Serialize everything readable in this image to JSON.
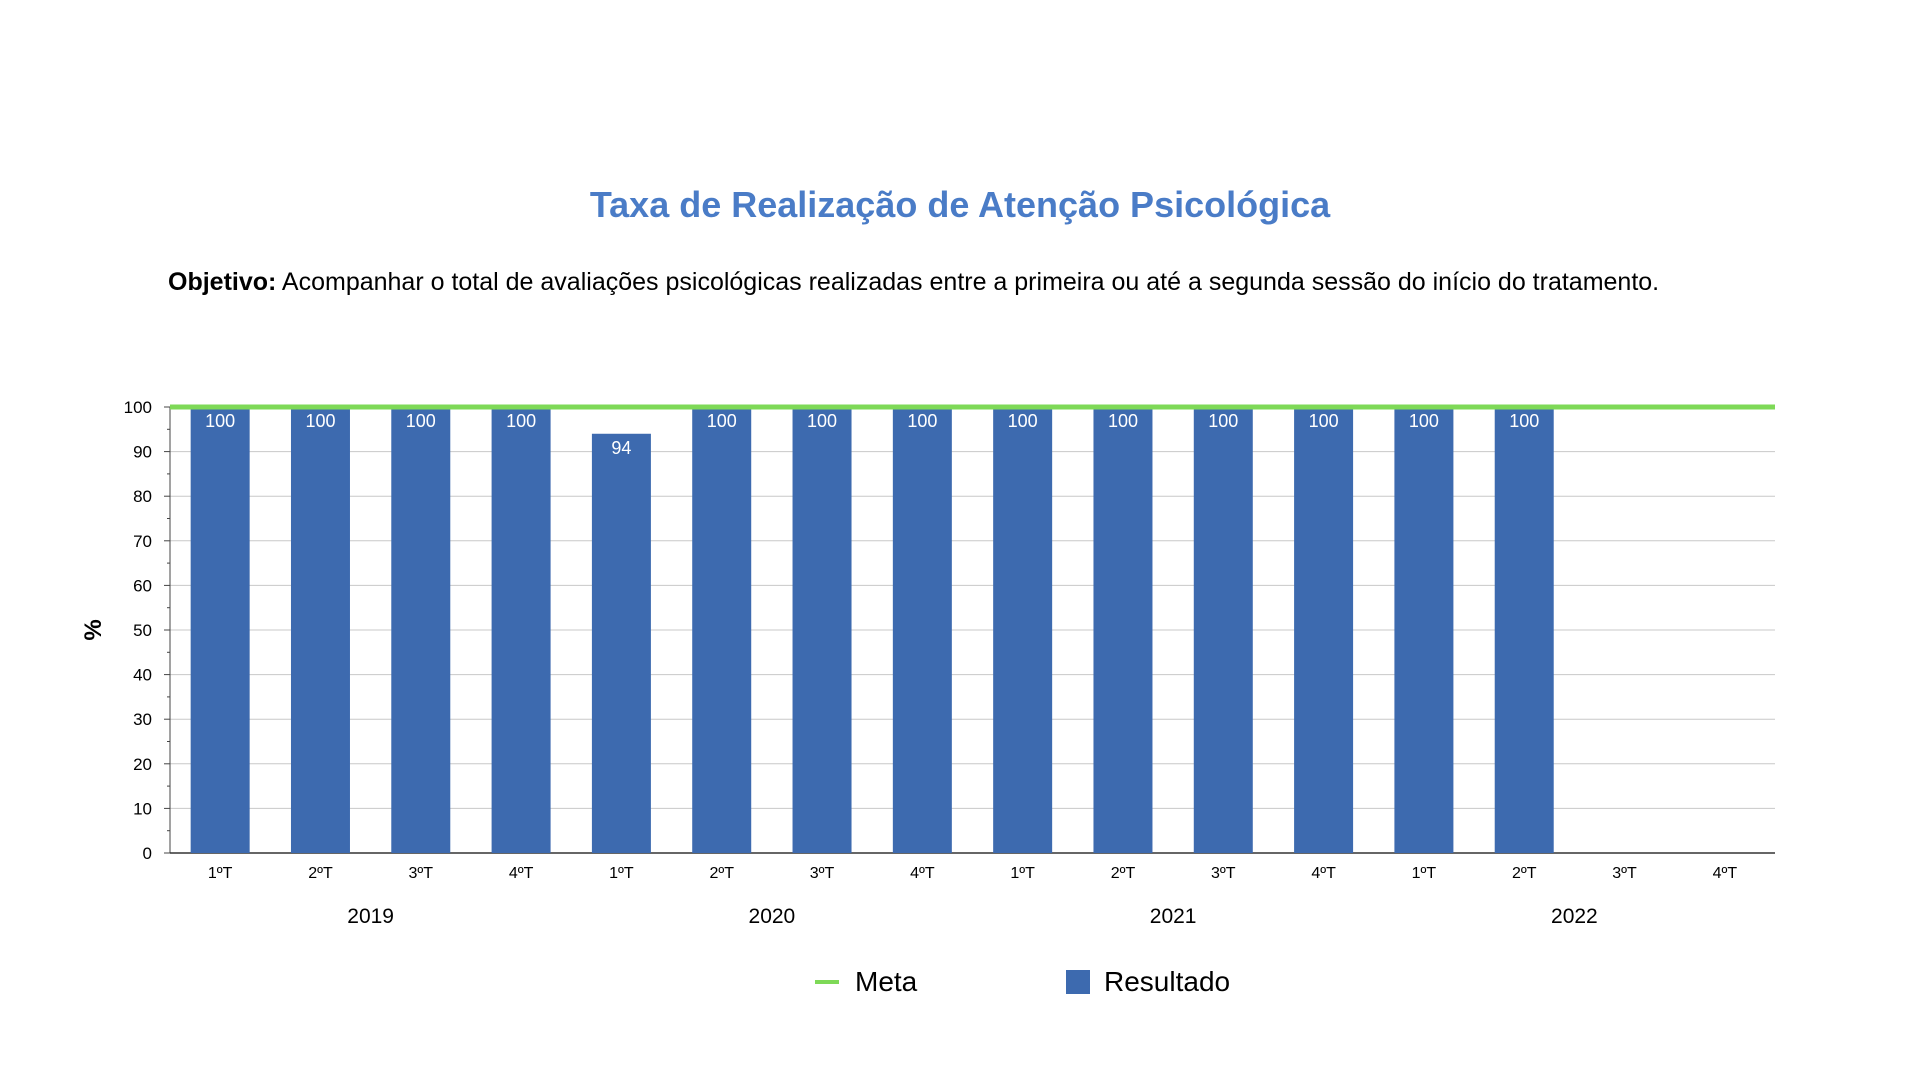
{
  "header": {
    "title": "Taxa de Realização de Atenção Psicológica",
    "objective_label": "Objetivo:",
    "objective_text": " Acompanhar o total de avaliações psicológicas realizadas entre a primeira ou até a segunda sessão do início do tratamento."
  },
  "chart_data": {
    "type": "bar",
    "title": "Taxa de Realização de Atenção Psicológica",
    "xlabel": "",
    "ylabel": "%",
    "ylim": [
      0,
      100
    ],
    "yticks": [
      0,
      10,
      20,
      30,
      40,
      50,
      60,
      70,
      80,
      90,
      100
    ],
    "grid": true,
    "legend_position": "bottom",
    "categories": [
      "1ºT",
      "2ºT",
      "3ºT",
      "4ºT",
      "1ºT",
      "2ºT",
      "3ºT",
      "4ºT",
      "1ºT",
      "2ºT",
      "3ºT",
      "4ºT",
      "1ºT",
      "2ºT",
      "3ºT",
      "4ºT"
    ],
    "groups": [
      {
        "label": "2019",
        "count": 4
      },
      {
        "label": "2020",
        "count": 4
      },
      {
        "label": "2021",
        "count": 4
      },
      {
        "label": "2022",
        "count": 4
      }
    ],
    "series": [
      {
        "name": "Resultado",
        "type": "bar",
        "color": "#3d6aaf",
        "values": [
          100,
          100,
          100,
          100,
          94,
          100,
          100,
          100,
          100,
          100,
          100,
          100,
          100,
          100,
          null,
          null
        ]
      },
      {
        "name": "Meta",
        "type": "line",
        "color": "#7ed957",
        "values": [
          100,
          100,
          100,
          100,
          100,
          100,
          100,
          100,
          100,
          100,
          100,
          100,
          100,
          100,
          100,
          100
        ]
      }
    ]
  },
  "legend": {
    "items": [
      {
        "name": "Meta",
        "color": "#7ed957",
        "kind": "line"
      },
      {
        "name": "Resultado",
        "color": "#3d6aaf",
        "kind": "box"
      }
    ]
  }
}
